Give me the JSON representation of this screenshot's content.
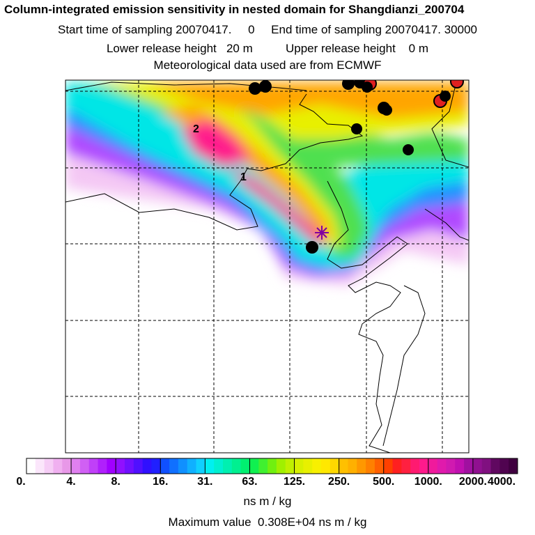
{
  "title": "Column-integrated emission sensitivity in nested domain for Shangdianzi_200704",
  "line2": "Start time of sampling 20070417.     0     End time of sampling 20070417. 30000",
  "line3": "Lower release height   20 m          Upper release height    0 m",
  "line4": "Meteorological data used are from ECMWF",
  "labels": [
    "1",
    "2"
  ],
  "colorbar": {
    "ticks": [
      "0.",
      "4.",
      "8.",
      "16.",
      "31.",
      "63.",
      "125.",
      "250.",
      "500.",
      "1000.",
      "2000.",
      "4000."
    ],
    "unit": "ns m / kg"
  },
  "max_value_text": "Maximum value  0.308E+04 ns m / kg",
  "colors": {
    "high": "#ff1a8c",
    "orange": "#ffa500",
    "yellow": "#f0f000",
    "green": "#40e040",
    "cyan": "#00e8e8",
    "blue": "#1e7fff",
    "purple": "#a000ff"
  }
}
